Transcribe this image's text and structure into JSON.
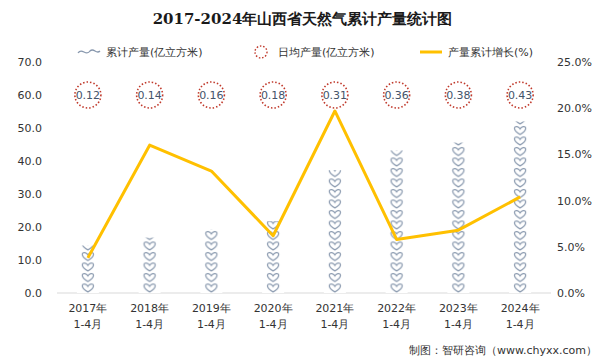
{
  "chart_data": {
    "type": "bar",
    "title": "2017-2024年山西省天然气累计产量统计图",
    "source": "制图：智研咨询（www.chyxx.com）",
    "categories": [
      "2017年\n1-4月",
      "2018年\n1-4月",
      "2019年\n1-4月",
      "2020年\n1-4月",
      "2021年\n1-4月",
      "2022年\n1-4月",
      "2023年\n1-4月",
      "2024年\n1-4月"
    ],
    "series": [
      {
        "name": "累计产量(亿立方米)",
        "type": "bar",
        "marker": "pictogram",
        "color": "#8797ad",
        "values": [
          14.4,
          16.8,
          19.2,
          21.8,
          37.2,
          43.2,
          45.6,
          52.0
        ]
      },
      {
        "name": "日均产量(亿立方米)",
        "type": "label",
        "marker": "circle",
        "color": "#c0392b",
        "data_labels": true,
        "values": [
          0.12,
          0.14,
          0.16,
          0.18,
          0.31,
          0.36,
          0.38,
          0.43
        ]
      },
      {
        "name": "产量累计增长(%)",
        "type": "line",
        "axis": "y2",
        "color": "#ffc000",
        "values": [
          3.8,
          16.0,
          13.2,
          6.2,
          19.7,
          5.8,
          6.8,
          10.4
        ]
      }
    ],
    "ylim": [
      0,
      70
    ],
    "yticks": [
      {
        "value": 0,
        "label": "0.0"
      },
      {
        "value": 10,
        "label": "10.0"
      },
      {
        "value": 20,
        "label": "20.0"
      },
      {
        "value": 30,
        "label": "30.0"
      },
      {
        "value": 40,
        "label": "40.0"
      },
      {
        "value": 50,
        "label": "50.0"
      },
      {
        "value": 60,
        "label": "60.0"
      },
      {
        "value": 70,
        "label": "70.0"
      }
    ],
    "y2lim": [
      0,
      25
    ],
    "y2ticks": [
      {
        "value": 0,
        "label": "0.0%"
      },
      {
        "value": 5,
        "label": "5.0%"
      },
      {
        "value": 10,
        "label": "10.0%"
      },
      {
        "value": 15,
        "label": "15.0%"
      },
      {
        "value": 20,
        "label": "20.0%"
      },
      {
        "value": 25,
        "label": "25.0%"
      }
    ],
    "grid": false,
    "legend": "top"
  }
}
